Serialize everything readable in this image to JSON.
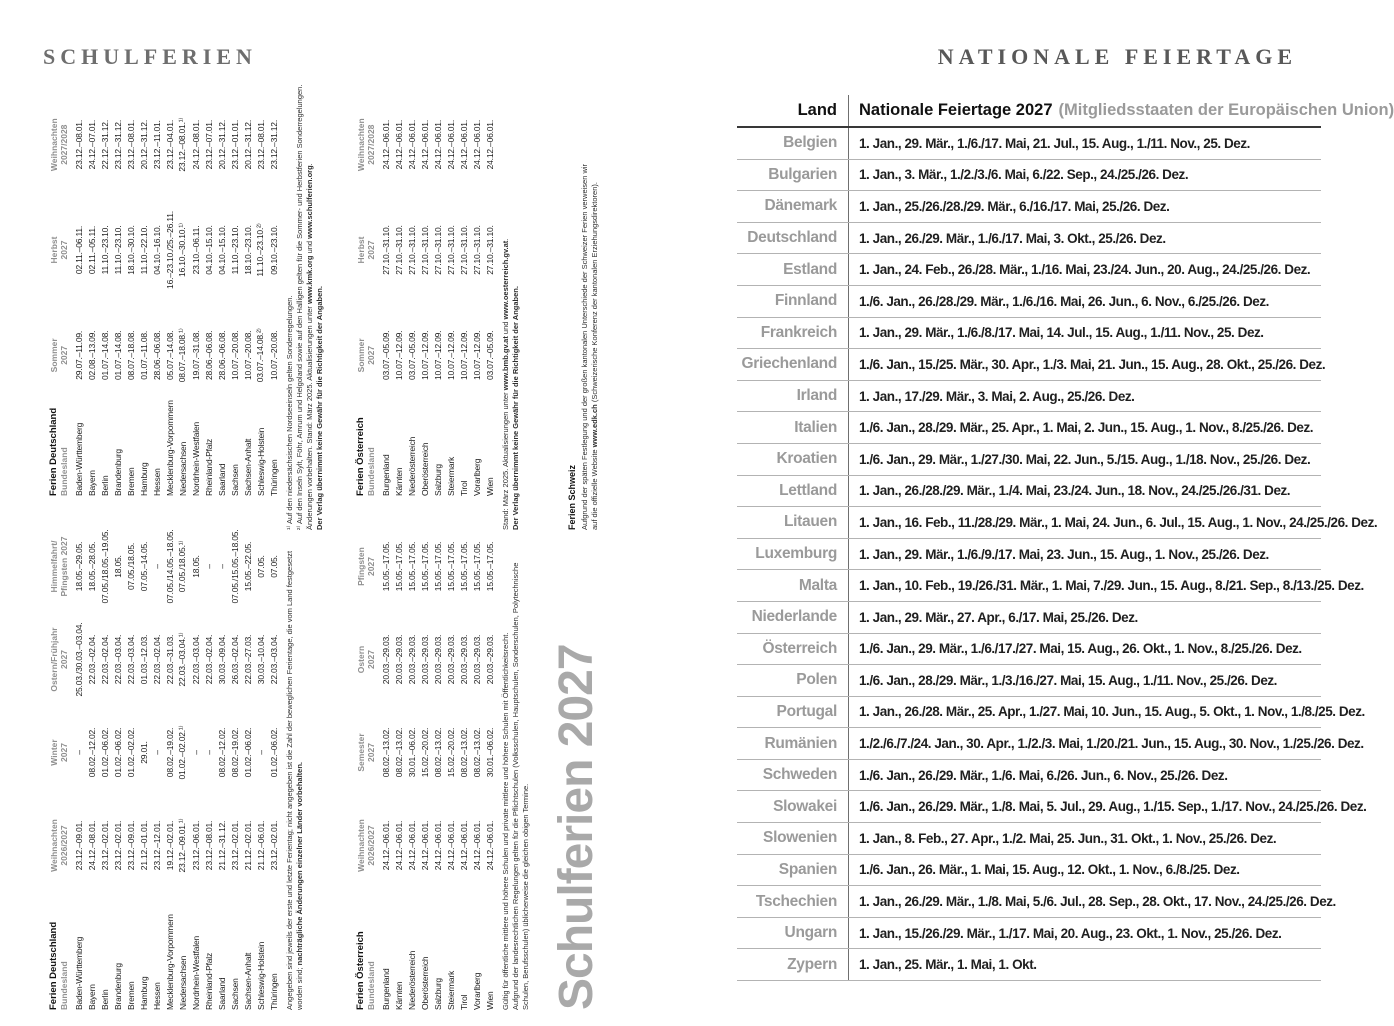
{
  "page": {
    "left_header": "SCHULFERIEN",
    "right_header": "NATIONALE FEIERTAGE"
  },
  "schulferien": {
    "big_title": "Schulferien 2027",
    "tables": [
      {
        "key": "de",
        "title": "Ferien Deutschland",
        "region_label": "Bundesland",
        "split": 4,
        "columns": [
          {
            "l1": "Weihnachten",
            "l2": "2026/2027"
          },
          {
            "l1": "Winter",
            "l2": "2027"
          },
          {
            "l1": "Ostern/Frühjahr",
            "l2": "2027"
          },
          {
            "l1": "Himmelfahrt/",
            "l2": "Pfingsten 2027"
          },
          {
            "l1": "Sommer",
            "l2": "2027"
          },
          {
            "l1": "Herbst",
            "l2": "2027"
          },
          {
            "l1": "Weihnachten",
            "l2": "2027/2028"
          }
        ],
        "rows": [
          {
            "name": "Baden-Württemberg",
            "values": [
              "23.12.–09.01.",
              "–",
              "25.03./30.03.–03.04.",
              "18.05.–29.05.",
              "29.07.–11.09.",
              "02.11.–06.11.",
              "23.12.–08.01."
            ]
          },
          {
            "name": "Bayern",
            "values": [
              "24.12.–08.01.",
              "08.02.–12.02.",
              "22.03.–02.04.",
              "18.05.–28.05.",
              "02.08.–13.09.",
              "02.11.–05.11.",
              "24.12.–07.01."
            ]
          },
          {
            "name": "Berlin",
            "values": [
              "23.12.–02.01.",
              "01.02.–06.02.",
              "22.03.–02.04.",
              "07.05./18.05.–19.05.",
              "01.07.–14.08.",
              "11.10.–23.10.",
              "22.12.–31.12."
            ]
          },
          {
            "name": "Brandenburg",
            "values": [
              "23.12.–02.01.",
              "01.02.–06.02.",
              "22.03.–03.04.",
              "18.05.",
              "01.07.–14.08.",
              "11.10.–23.10.",
              "23.12.–31.12."
            ]
          },
          {
            "name": "Bremen",
            "values": [
              "23.12.–09.01.",
              "01.02.–02.02.",
              "22.03.–03.04.",
              "07.05./18.05.",
              "08.07.–18.08.",
              "18.10.–30.10.",
              "23.12.–08.01."
            ]
          },
          {
            "name": "Hamburg",
            "values": [
              "21.12.–01.01.",
              "29.01.",
              "01.03.–12.03.",
              "07.05.–14.05.",
              "01.07.–11.08.",
              "11.10.–22.10.",
              "20.12.–31.12."
            ]
          },
          {
            "name": "Hessen",
            "values": [
              "23.12.–12.01.",
              "–",
              "22.03.–02.04.",
              "–",
              "28.06.–06.08.",
              "04.10.–16.10.",
              "23.12.–11.01."
            ]
          },
          {
            "name": "Mecklenburg-Vorpommern",
            "values": [
              "19.12.–02.01.",
              "08.02.–19.02.",
              "22.03.–31.03.",
              "07.05./14.05.–18.05.",
              "05.07.–14.08.",
              "16.–23.10./25.–26.11.",
              "23.12.–04.01."
            ]
          },
          {
            "name": "Niedersachsen",
            "values": [
              "23.12.–09.01.¹⁾",
              "01.02.–02.02.¹⁾",
              "22.03.–03.04.¹⁾",
              "07.05./18.05.¹⁾",
              "08.07.–18.08.¹⁾",
              "16.10.–30.10.¹⁾",
              "23.12.–08.01.¹⁾"
            ]
          },
          {
            "name": "Nordrhein-Westfalen",
            "values": [
              "23.12.–06.01.",
              "–",
              "22.03.–03.04.",
              "18.05.",
              "19.07.–31.08.",
              "23.10.–06.11.",
              "24.12.–08.01."
            ]
          },
          {
            "name": "Rheinland-Pfalz",
            "values": [
              "23.12.–08.01.",
              "–",
              "22.03.–02.04.",
              "–",
              "28.06.–06.08.",
              "04.10.–15.10.",
              "23.12.–07.01."
            ]
          },
          {
            "name": "Saarland",
            "values": [
              "21.12.–31.12.",
              "08.02.–12.02.",
              "30.03.–09.04.",
              "–",
              "28.06.–06.08.",
              "04.10.–15.10.",
              "20.12.–31.12."
            ]
          },
          {
            "name": "Sachsen",
            "values": [
              "23.12.–02.01.",
              "08.02.–19.02.",
              "26.03.–02.04.",
              "07.05./15.05.–18.05.",
              "10.07.–20.08.",
              "11.10.–23.10.",
              "23.12.–01.01."
            ]
          },
          {
            "name": "Sachsen-Anhalt",
            "values": [
              "21.12.–02.01.",
              "01.02.–06.02.",
              "22.03.–27.03.",
              "15.05.–22.05.",
              "10.07.–20.08.",
              "18.10.–23.10.",
              "20.12.–31.12."
            ]
          },
          {
            "name": "Schleswig-Holstein",
            "values": [
              "21.12.–06.01.",
              "–",
              "30.03.–10.04.",
              "07.05.",
              "03.07.–14.08.²⁾",
              "11.10.–23.10.²⁾",
              "23.12.–08.01."
            ]
          },
          {
            "name": "Thüringen",
            "values": [
              "23.12.–02.01.",
              "01.02.–06.02.",
              "22.03.–03.04.",
              "07.05.",
              "10.07.–20.08.",
              "09.10.–23.10.",
              "23.12.–31.12."
            ]
          }
        ]
      },
      {
        "key": "at",
        "title": "Ferien Österreich",
        "region_label": "Bundesland",
        "split": 4,
        "columns": [
          {
            "l1": "Weihnachten",
            "l2": "2026/2027"
          },
          {
            "l1": "Semester",
            "l2": "2027"
          },
          {
            "l1": "Ostern",
            "l2": "2027"
          },
          {
            "l1": "Pfingsten",
            "l2": "2027"
          },
          {
            "l1": "Sommer",
            "l2": "2027"
          },
          {
            "l1": "Herbst",
            "l2": "2027"
          },
          {
            "l1": "Weihnachten",
            "l2": "2027/2028"
          }
        ],
        "rows": [
          {
            "name": "Burgenland",
            "values": [
              "24.12.–06.01.",
              "08.02.–13.02.",
              "20.03.–29.03.",
              "15.05.–17.05.",
              "03.07.–05.09.",
              "27.10.–31.10.",
              "24.12.–06.01."
            ]
          },
          {
            "name": "Kärnten",
            "values": [
              "24.12.–06.01.",
              "08.02.–13.02.",
              "20.03.–29.03.",
              "15.05.–17.05.",
              "10.07.–12.09.",
              "27.10.–31.10.",
              "24.12.–06.01."
            ]
          },
          {
            "name": "Niederösterreich",
            "values": [
              "24.12.–06.01.",
              "30.01.–06.02.",
              "20.03.–29.03.",
              "15.05.–17.05.",
              "03.07.–05.09.",
              "27.10.–31.10.",
              "24.12.–06.01."
            ]
          },
          {
            "name": "Oberösterreich",
            "values": [
              "24.12.–06.01.",
              "15.02.–20.02.",
              "20.03.–29.03.",
              "15.05.–17.05.",
              "10.07.–12.09.",
              "27.10.–31.10.",
              "24.12.–06.01."
            ]
          },
          {
            "name": "Salzburg",
            "values": [
              "24.12.–06.01.",
              "08.02.–13.02.",
              "20.03.–29.03.",
              "15.05.–17.05.",
              "10.07.–12.09.",
              "27.10.–31.10.",
              "24.12.–06.01."
            ]
          },
          {
            "name": "Steiermark",
            "values": [
              "24.12.–06.01.",
              "15.02.–20.02.",
              "20.03.–29.03.",
              "15.05.–17.05.",
              "10.07.–12.09.",
              "27.10.–31.10.",
              "24.12.–06.01."
            ]
          },
          {
            "name": "Tirol",
            "values": [
              "24.12.–06.01.",
              "08.02.–13.02.",
              "20.03.–29.03.",
              "15.05.–17.05.",
              "10.07.–12.09.",
              "27.10.–31.10.",
              "24.12.–06.01."
            ]
          },
          {
            "name": "Vorarlberg",
            "values": [
              "24.12.–06.01.",
              "08.02.–13.02.",
              "20.03.–29.03.",
              "15.05.–17.05.",
              "10.07.–12.09.",
              "27.10.–31.10.",
              "24.12.–06.01."
            ]
          },
          {
            "name": "Wien",
            "values": [
              "24.12.–06.01.",
              "30.01.–06.02.",
              "20.03.–29.03.",
              "15.05.–17.05.",
              "03.07.–05.09.",
              "27.10.–31.10.",
              "24.12.–06.01."
            ]
          }
        ]
      }
    ],
    "notes": {
      "de_left": [
        [
          "Angegeben sind jeweils der erste und letzte Ferientag; nicht angegeben ist die Zahl der beweglichen Ferientage, die vom Land festgesetzt"
        ],
        [
          "worden sind; ",
          {
            "b": "nachträgliche Änderungen einzelner Länder vorbehalten."
          }
        ]
      ],
      "de_right": [
        [
          "¹⁾ Auf den niedersächsischen Nordseeinseln gelten Sonderregelungen."
        ],
        [
          "²⁾ Auf den Inseln Sylt, Föhr, Amrum und Helgoland sowie auf den Halligen gelten für die Sommer- und Herbstferien Sonderregelungen."
        ],
        [
          "Änderungen vorbehalten. Stand: März 2025. Aktualisierungen unter ",
          {
            "b": "www.kmk.org"
          },
          " und ",
          {
            "b": "www.schulferien.org"
          },
          "."
        ],
        [
          {
            "b": "Der Verlag übernimmt keine Gewähr für die Richtigkeit der Angaben."
          }
        ]
      ],
      "at_left": [
        [
          "Gültig für öffentliche mittlere und höhere Schulen und private mittlere und höhere Schulen mit Öffentlichkeitsrecht."
        ],
        [
          "Aufgrund der landesrechtlichen Regelungen gelten für die Pflichtschulen (Volksschulen, Hauptschulen, Sonderschulen, Polytechnische"
        ],
        [
          "Schulen, Berufsschulen) üblicherweise die gleichen obigen Termine."
        ]
      ],
      "at_right": [
        [
          "Stand: März 2025. Aktualisierungen unter ",
          {
            "b": "www.bmb.gv.at"
          },
          " und ",
          {
            "b": "www.oesterreich.gv.at"
          },
          "."
        ],
        [
          {
            "b": "Der Verlag übernimmt keine Gewähr für die Richtigkeit der Angaben."
          }
        ]
      ],
      "schweiz_lines": [
        [
          "Aufgrund der späten Festlegung und der großen kantonalen Unterschiede der Schweizer Ferien verweisen wir"
        ],
        [
          "auf die offizielle Website ",
          {
            "b": "www.edk.ch"
          },
          " (Schweizerische Konferenz der kantonalen Erziehungsdirektoren)."
        ]
      ]
    },
    "schweiz_title": "Ferien Schweiz"
  },
  "feiertage": {
    "header": {
      "land": "Land",
      "title": "Nationale Feiertage 2027",
      "subtitle": "(Mitgliedsstaaten der Europäischen Union)"
    },
    "rows": [
      {
        "country": "Belgien",
        "dates": "1. Jan., 29. Mär., 1./6./17. Mai, 21. Jul., 15. Aug., 1./11. Nov., 25. Dez."
      },
      {
        "country": "Bulgarien",
        "dates": "1. Jan., 3. Mär., 1./2./3./6. Mai, 6./22. Sep., 24./25./26. Dez."
      },
      {
        "country": "Dänemark",
        "dates": "1. Jan., 25./26./28./29. Mär., 6./16./17. Mai, 25./26. Dez."
      },
      {
        "country": "Deutschland",
        "dates": "1. Jan., 26./29. Mär., 1./6./17. Mai, 3. Okt., 25./26. Dez."
      },
      {
        "country": "Estland",
        "dates": "1. Jan., 24. Feb., 26./28. Mär., 1./16. Mai, 23./24. Jun., 20. Aug., 24./25./26. Dez."
      },
      {
        "country": "Finnland",
        "dates": "1./6. Jan., 26./28./29. Mär., 1./6./16. Mai, 26. Jun., 6. Nov., 6./25./26. Dez."
      },
      {
        "country": "Frankreich",
        "dates": "1. Jan., 29. Mär., 1./6./8./17. Mai, 14. Jul., 15. Aug., 1./11. Nov., 25. Dez."
      },
      {
        "country": "Griechenland",
        "dates": "1./6. Jan., 15./25. Mär., 30. Apr., 1./3. Mai, 21. Jun., 15. Aug., 28. Okt., 25./26. Dez."
      },
      {
        "country": "Irland",
        "dates": "1. Jan., 17./29. Mär., 3. Mai, 2. Aug., 25./26. Dez."
      },
      {
        "country": "Italien",
        "dates": "1./6. Jan., 28./29. Mär., 25. Apr., 1. Mai, 2. Jun., 15. Aug., 1. Nov., 8./25./26. Dez."
      },
      {
        "country": "Kroatien",
        "dates": "1./6. Jan., 29. Mär., 1./27./30. Mai, 22. Jun., 5./15. Aug., 1./18. Nov., 25./26. Dez."
      },
      {
        "country": "Lettland",
        "dates": "1. Jan., 26./28./29. Mär., 1./4. Mai, 23./24. Jun., 18. Nov., 24./25./26./31. Dez."
      },
      {
        "country": "Litauen",
        "dates": "1. Jan., 16. Feb., 11./28./29. Mär., 1. Mai, 24. Jun., 6. Jul., 15. Aug., 1. Nov., 24./25./26. Dez."
      },
      {
        "country": "Luxemburg",
        "dates": "1. Jan., 29. Mär., 1./6./9./17. Mai, 23. Jun., 15. Aug., 1. Nov., 25./26. Dez."
      },
      {
        "country": "Malta",
        "dates": "1. Jan., 10. Feb., 19./26./31. Mär., 1. Mai, 7./29. Jun., 15. Aug., 8./21. Sep., 8./13./25. Dez."
      },
      {
        "country": "Niederlande",
        "dates": "1. Jan., 29. Mär., 27. Apr., 6./17. Mai, 25./26. Dez."
      },
      {
        "country": "Österreich",
        "dates": "1./6. Jan., 29. Mär., 1./6./17./27. Mai, 15. Aug., 26. Okt., 1. Nov., 8./25./26. Dez."
      },
      {
        "country": "Polen",
        "dates": "1./6. Jan., 28./29. Mär., 1./3./16./27. Mai, 15. Aug., 1./11. Nov., 25./26. Dez."
      },
      {
        "country": "Portugal",
        "dates": "1. Jan., 26./28. Mär., 25. Apr., 1./27. Mai, 10. Jun., 15. Aug., 5. Okt., 1. Nov., 1./8./25. Dez."
      },
      {
        "country": "Rumänien",
        "dates": "1./2./6./7./24. Jan., 30. Apr., 1./2./3. Mai, 1./20./21. Jun., 15. Aug., 30. Nov., 1./25./26. Dez."
      },
      {
        "country": "Schweden",
        "dates": "1./6. Jan., 26./29. Mär., 1./6. Mai, 6./26. Jun., 6. Nov., 25./26. Dez."
      },
      {
        "country": "Slowakei",
        "dates": "1./6. Jan., 26./29. Mär., 1./8. Mai, 5. Jul., 29. Aug., 1./15. Sep., 1./17. Nov., 24./25./26. Dez."
      },
      {
        "country": "Slowenien",
        "dates": "1. Jan., 8. Feb., 27. Apr., 1./2. Mai, 25. Jun., 31. Okt., 1. Nov., 25./26. Dez."
      },
      {
        "country": "Spanien",
        "dates": "1./6. Jan., 26. Mär., 1. Mai, 15. Aug., 12. Okt., 1. Nov., 6./8./25. Dez."
      },
      {
        "country": "Tschechien",
        "dates": "1. Jan., 26./29. Mär., 1./8. Mai, 5./6. Jul., 28. Sep., 28. Okt., 17. Nov., 24./25./26. Dez."
      },
      {
        "country": "Ungarn",
        "dates": "1. Jan., 15./26./29. Mär., 1./17. Mai, 20. Aug., 23. Okt., 1. Nov., 25./26. Dez."
      },
      {
        "country": "Zypern",
        "dates": "1. Jan., 25. Mär., 1. Mai, 1. Okt."
      }
    ]
  }
}
